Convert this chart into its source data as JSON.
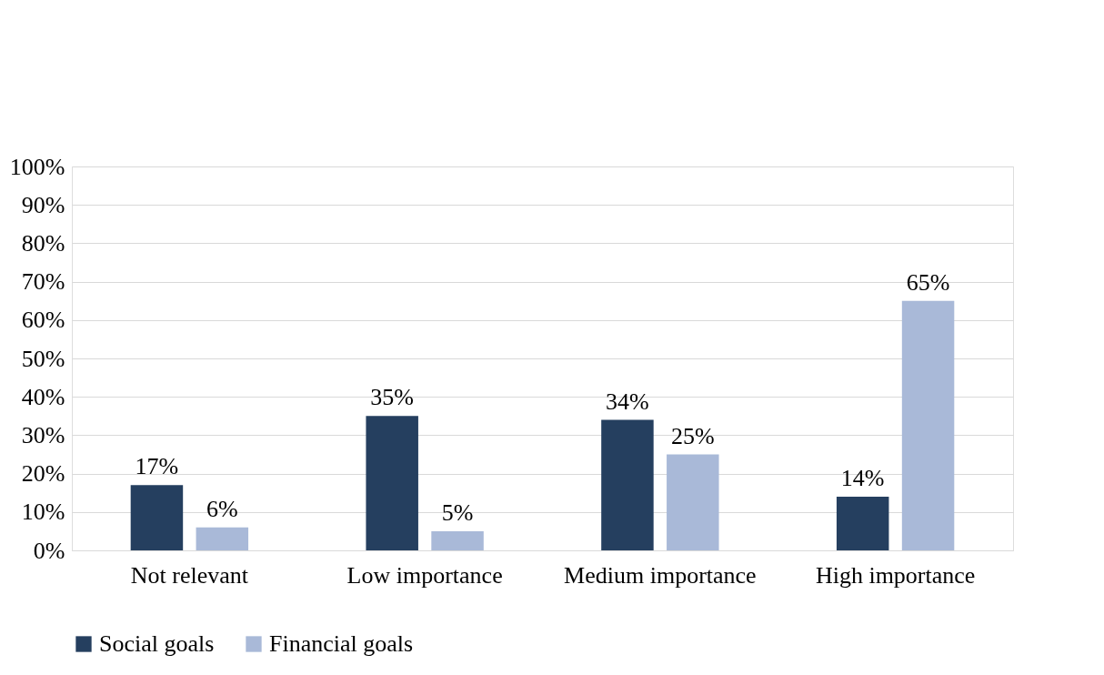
{
  "chart_data": {
    "type": "bar",
    "categories": [
      "Not relevant",
      "Low importance",
      "Medium importance",
      "High importance"
    ],
    "series": [
      {
        "name": "Social goals",
        "color": "#253f5f",
        "values": [
          17,
          35,
          34,
          14
        ],
        "value_labels": [
          "17%",
          "35%",
          "34%",
          "14%"
        ]
      },
      {
        "name": "Financial goals",
        "color": "#a9b9d8",
        "values": [
          6,
          5,
          25,
          65
        ],
        "value_labels": [
          "6%",
          "5%",
          "25%",
          "65%"
        ]
      }
    ],
    "ylim": [
      0,
      100
    ],
    "yticks": [
      {
        "value": 0,
        "label": "0%"
      },
      {
        "value": 10,
        "label": "10%"
      },
      {
        "value": 20,
        "label": "20%"
      },
      {
        "value": 30,
        "label": "30%"
      },
      {
        "value": 40,
        "label": "40%"
      },
      {
        "value": 50,
        "label": "50%"
      },
      {
        "value": 60,
        "label": "60%"
      },
      {
        "value": 70,
        "label": "70%"
      },
      {
        "value": 80,
        "label": "80%"
      },
      {
        "value": 90,
        "label": "90%"
      },
      {
        "value": 100,
        "label": "100%"
      }
    ],
    "grid": "y",
    "legend": "bottom"
  }
}
